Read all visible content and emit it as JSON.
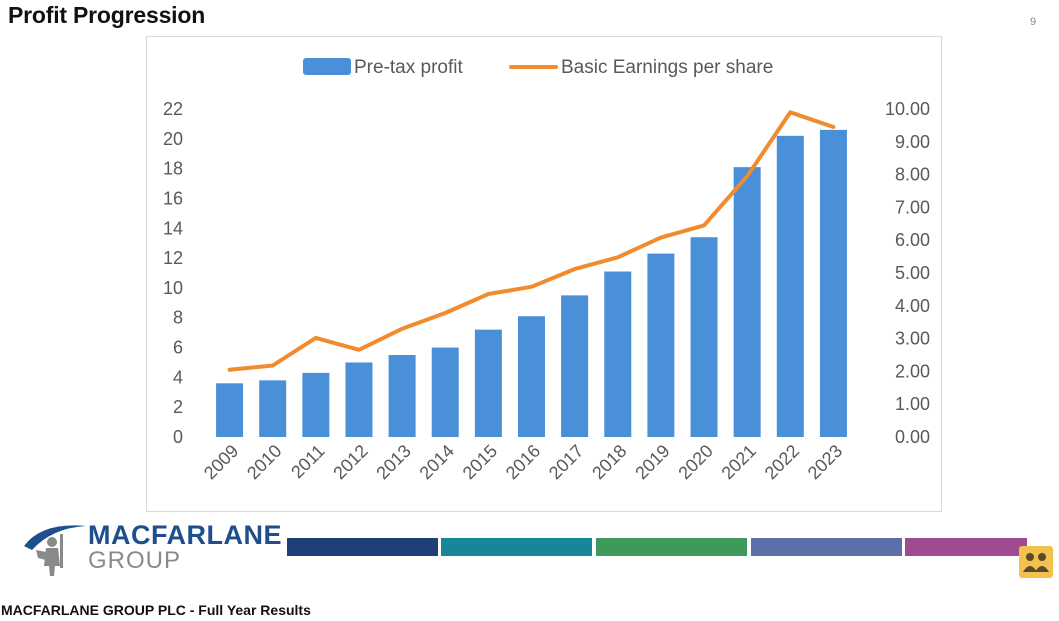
{
  "slide": {
    "title": "Profit Progression",
    "page_number": "9",
    "footer_text": "MACFARLANE GROUP PLC - Full Year Results",
    "logo": {
      "line1": "MACFARLANE",
      "line2": "GROUP",
      "icon": "knight-logo-icon"
    },
    "color_bar": [
      "#1f3f78",
      "#16879a",
      "#3d9a5b",
      "#5c6fa8",
      "#9e4c8f"
    ],
    "corner_icon": "people-icon"
  },
  "chart_data": {
    "type": "bar",
    "title": "",
    "categories": [
      "2009",
      "2010",
      "2011",
      "2012",
      "2013",
      "2014",
      "2015",
      "2016",
      "2017",
      "2018",
      "2019",
      "2020",
      "2021",
      "2022",
      "2023"
    ],
    "series": [
      {
        "name": "Pre-tax profit",
        "type": "bar",
        "axis": "left",
        "color": "#4a90d9",
        "values": [
          3.6,
          3.8,
          4.3,
          5.0,
          5.5,
          6.0,
          7.2,
          8.1,
          9.5,
          11.1,
          12.3,
          13.4,
          18.1,
          20.2,
          20.6
        ]
      },
      {
        "name": "Basic Earnings per share",
        "type": "line",
        "axis": "right",
        "color": "#f28a2e",
        "values": [
          2.05,
          2.18,
          3.02,
          2.66,
          3.3,
          3.78,
          4.36,
          4.58,
          5.12,
          5.48,
          6.08,
          6.45,
          7.95,
          9.9,
          9.45
        ]
      }
    ],
    "y_left": {
      "min": 0,
      "max": 22,
      "ticks": [
        "0",
        "2",
        "4",
        "6",
        "8",
        "10",
        "12",
        "14",
        "16",
        "18",
        "20",
        "22"
      ]
    },
    "y_right": {
      "min": 0,
      "max": 10,
      "ticks": [
        "0.00",
        "1.00",
        "2.00",
        "3.00",
        "4.00",
        "5.00",
        "6.00",
        "7.00",
        "8.00",
        "9.00",
        "10.00"
      ]
    },
    "legend_position": "top",
    "grid": false
  }
}
